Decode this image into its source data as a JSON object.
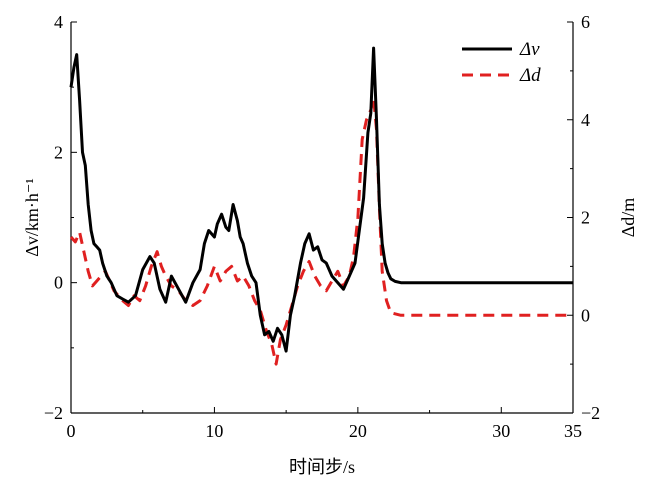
{
  "chart_data": {
    "type": "line",
    "xlabel": "时间步/s",
    "ylabel_left": "Δv/km·h⁻¹",
    "ylabel_right": "Δd/m",
    "xlim": [
      0,
      35
    ],
    "ylim_left": [
      -2,
      4
    ],
    "ylim_right": [
      -2,
      6
    ],
    "x_ticks": [
      "0",
      "10",
      "20",
      "30",
      "35"
    ],
    "y_left_ticks": [
      "−2",
      "0",
      "2",
      "4"
    ],
    "y_right_ticks": [
      "−2",
      "0",
      "2",
      "4",
      "6"
    ],
    "legend_position": "top-right",
    "series": [
      {
        "name": "Δv",
        "axis": "left",
        "style": "solid",
        "color": "#000000",
        "x": [
          0,
          0.2,
          0.4,
          0.6,
          0.8,
          1.0,
          1.2,
          1.4,
          1.6,
          1.8,
          2.0,
          2.2,
          2.5,
          2.8,
          3.2,
          3.6,
          4.0,
          4.5,
          5.0,
          5.5,
          5.8,
          6.2,
          6.6,
          7.0,
          7.5,
          8.0,
          8.5,
          9.0,
          9.3,
          9.6,
          10.0,
          10.2,
          10.5,
          10.8,
          11.0,
          11.3,
          11.6,
          11.8,
          12.0,
          12.3,
          12.6,
          12.9,
          13.2,
          13.5,
          13.8,
          14.1,
          14.4,
          14.7,
          15.0,
          15.3,
          15.6,
          16.0,
          16.3,
          16.6,
          16.9,
          17.2,
          17.5,
          17.8,
          18.2,
          18.6,
          19.0,
          19.4,
          19.8,
          20.1,
          20.4,
          20.7,
          20.9,
          21.1,
          21.3,
          21.5,
          21.7,
          21.9,
          22.1,
          22.3,
          22.6,
          23.0,
          24,
          26,
          28,
          30,
          32,
          35
        ],
        "values": [
          3.0,
          3.3,
          3.5,
          2.8,
          2.0,
          1.8,
          1.2,
          0.8,
          0.6,
          0.55,
          0.5,
          0.3,
          0.1,
          0.0,
          -0.2,
          -0.25,
          -0.3,
          -0.2,
          0.2,
          0.4,
          0.3,
          -0.1,
          -0.3,
          0.1,
          -0.1,
          -0.3,
          0.0,
          0.2,
          0.6,
          0.8,
          0.7,
          0.9,
          1.05,
          0.85,
          0.8,
          1.2,
          0.95,
          0.7,
          0.6,
          0.3,
          0.1,
          0.0,
          -0.5,
          -0.8,
          -0.75,
          -0.9,
          -0.7,
          -0.8,
          -1.05,
          -0.5,
          -0.2,
          0.3,
          0.6,
          0.75,
          0.5,
          0.55,
          0.35,
          0.3,
          0.1,
          0.0,
          -0.1,
          0.1,
          0.3,
          0.8,
          1.3,
          2.3,
          2.6,
          3.6,
          2.5,
          1.2,
          0.6,
          0.3,
          0.15,
          0.06,
          0.02,
          0.0,
          0.0,
          0.0,
          0.0,
          0.0,
          0.0,
          0.0
        ]
      },
      {
        "name": "Δd",
        "axis": "right",
        "style": "dashed",
        "color": "#e02020",
        "x": [
          0,
          0.3,
          0.6,
          0.9,
          1.2,
          1.5,
          1.8,
          2.1,
          2.4,
          2.7,
          3.0,
          3.3,
          3.6,
          4.0,
          4.4,
          4.8,
          5.2,
          5.6,
          6.0,
          6.3,
          6.6,
          7.0,
          7.5,
          8.0,
          8.5,
          9.0,
          9.5,
          10.0,
          10.4,
          10.8,
          11.2,
          11.6,
          12.0,
          12.4,
          12.8,
          13.2,
          13.6,
          14.0,
          14.3,
          14.6,
          15.0,
          15.4,
          15.8,
          16.2,
          16.6,
          17.0,
          17.4,
          17.8,
          18.2,
          18.6,
          19.0,
          19.4,
          19.7,
          20.0,
          20.3,
          20.6,
          20.9,
          21.1,
          21.3,
          21.5,
          21.7,
          22.0,
          22.3,
          23.0,
          26,
          30,
          35
        ],
        "values": [
          1.6,
          1.5,
          1.7,
          1.3,
          0.9,
          0.6,
          0.7,
          0.8,
          0.9,
          0.7,
          0.5,
          0.4,
          0.3,
          0.2,
          0.4,
          0.3,
          0.6,
          1.0,
          1.3,
          1.0,
          0.8,
          0.6,
          0.5,
          0.3,
          0.2,
          0.3,
          0.6,
          1.0,
          0.7,
          0.9,
          1.0,
          0.7,
          0.8,
          0.6,
          0.3,
          0.1,
          -0.3,
          -0.6,
          -1.0,
          -0.5,
          -0.2,
          0.2,
          0.6,
          0.9,
          1.1,
          0.8,
          0.6,
          0.5,
          0.7,
          0.9,
          0.6,
          0.8,
          1.2,
          2.0,
          3.6,
          4.0,
          4.2,
          4.45,
          3.8,
          2.2,
          0.9,
          0.3,
          0.05,
          0.0,
          0.0,
          0.0,
          0.0
        ]
      }
    ]
  }
}
